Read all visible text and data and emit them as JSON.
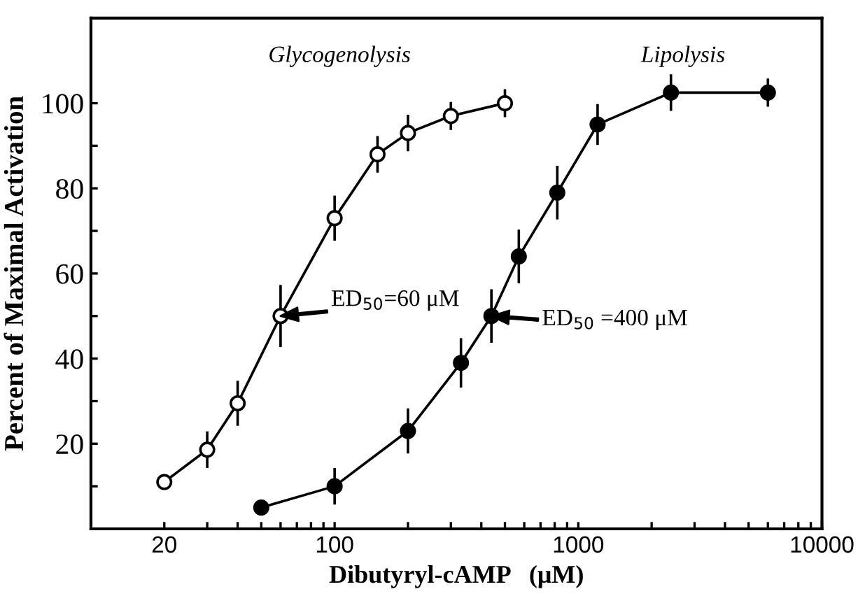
{
  "chart_data": {
    "type": "line",
    "xlabel": "Dibutyryl-cAMP   (μM)",
    "ylabel": "Percent of Maximal Activation",
    "log": "x",
    "xlim": [
      10,
      10000
    ],
    "ylim": [
      0,
      120
    ],
    "xticks": [
      20,
      {
        "value": 30,
        "label": null
      },
      {
        "value": 40,
        "label": null
      },
      {
        "value": 50,
        "label": null
      },
      {
        "value": 60,
        "label": null
      },
      {
        "value": 70,
        "label": null
      },
      {
        "value": 80,
        "label": null
      },
      {
        "value": 90,
        "label": null
      },
      100,
      {
        "value": 200,
        "label": null
      },
      {
        "value": 300,
        "label": null
      },
      {
        "value": 400,
        "label": null
      },
      {
        "value": 500,
        "label": null
      },
      {
        "value": 600,
        "label": null
      },
      {
        "value": 700,
        "label": null
      },
      {
        "value": 800,
        "label": null
      },
      {
        "value": 900,
        "label": null
      },
      1000,
      {
        "value": 2000,
        "label": null
      },
      {
        "value": 3000,
        "label": null
      },
      {
        "value": 4000,
        "label": null
      },
      {
        "value": 5000,
        "label": null
      },
      {
        "value": 6000,
        "label": null
      },
      {
        "value": 7000,
        "label": null
      },
      {
        "value": 8000,
        "label": null
      },
      {
        "value": 9000,
        "label": null
      },
      10000
    ],
    "yticks": [
      {
        "value": 10,
        "label": null
      },
      20,
      {
        "value": 30,
        "label": null
      },
      40,
      {
        "value": 50,
        "label": null
      },
      60,
      {
        "value": 70,
        "label": null
      },
      80,
      {
        "value": 90,
        "label": null
      },
      100
    ],
    "grid": false,
    "legend": false,
    "marker": "circle",
    "line_style": "solid",
    "series": [
      {
        "name": "Glycogenolysis",
        "color": "#000000",
        "x": [
          20,
          30,
          40,
          60,
          100,
          150,
          200,
          300,
          500
        ],
        "values": [
          11,
          18.6,
          29.5,
          50,
          73,
          88,
          93,
          97,
          100
        ],
        "errors": [
          null,
          4,
          5,
          7,
          5,
          4,
          4,
          3,
          3
        ]
      },
      {
        "name": "Lipolysis",
        "color": "#000000",
        "x": [
          50,
          100,
          200,
          330,
          440,
          570,
          820,
          1200,
          2400,
          6000
        ],
        "values": [
          5,
          10,
          23,
          39,
          50,
          64,
          79,
          95,
          102.5,
          102.5
        ],
        "errors": [
          null,
          4,
          5,
          5.5,
          6,
          6,
          6,
          4.5,
          4,
          3
        ]
      }
    ],
    "annotations": [
      {
        "text": "ED$_{50}$=60 μM",
        "x": 60,
        "y": 50
      },
      {
        "text": "ED$_{50}$ =400 μM",
        "x": 440,
        "y": 50
      }
    ]
  }
}
